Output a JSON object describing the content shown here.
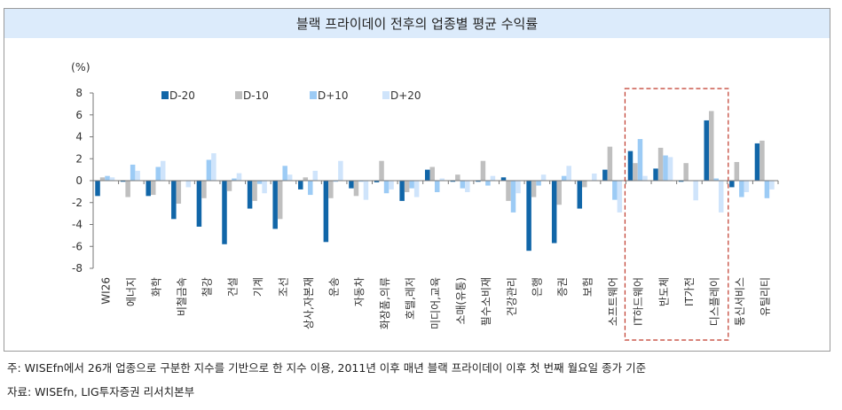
{
  "chart_data": {
    "type": "bar",
    "title": "블랙 프라이데이 전후의 업종별 평균 수익률",
    "ylabel": "(%)",
    "xlabel": "",
    "ylim": [
      -8,
      8
    ],
    "yticks": [
      8,
      6,
      4,
      2,
      0,
      -2,
      -4,
      -6,
      -8
    ],
    "grid": false,
    "legend_position": "top-left",
    "categories": [
      "WI26",
      "에너지",
      "화학",
      "비철금속",
      "철강",
      "건설",
      "기계",
      "조선",
      "상사,자본재",
      "운송",
      "자동차",
      "화장품,의류",
      "호텔,레저",
      "미디어,교육",
      "소매(유통)",
      "필수소비재",
      "건강관리",
      "은행",
      "증권",
      "보험",
      "소프트웨어",
      "IT하드웨어",
      "반도체",
      "IT가전",
      "디스플레이",
      "통신서비스",
      "유틸리티"
    ],
    "highlighted_categories": [
      "IT하드웨어",
      "반도체",
      "IT가전",
      "디스플레이"
    ],
    "series": [
      {
        "name": "D-20",
        "color": "#1166a8",
        "values": [
          -1.4,
          -0.1,
          -1.4,
          -3.5,
          -4.2,
          -5.8,
          -2.55,
          -4.4,
          -0.8,
          -5.6,
          -0.7,
          -0.15,
          -1.85,
          1.0,
          -0.1,
          -0.1,
          0.3,
          -6.4,
          -5.7,
          -2.55,
          1.0,
          2.7,
          1.1,
          -0.1,
          5.5,
          -0.6,
          3.4
        ]
      },
      {
        "name": "D-10",
        "color": "#bfbfbf",
        "values": [
          0.3,
          -1.5,
          -1.3,
          -2.1,
          -1.6,
          -0.95,
          -1.85,
          -3.5,
          0.3,
          -1.6,
          -1.4,
          1.8,
          -1.05,
          1.25,
          0.55,
          1.8,
          -1.85,
          -1.5,
          -2.2,
          -0.6,
          3.1,
          1.6,
          3.0,
          1.6,
          6.35,
          1.7,
          3.65
        ]
      },
      {
        "name": "D+10",
        "color": "#9ccbf5",
        "values": [
          0.43,
          1.46,
          1.25,
          0.0,
          1.9,
          0.2,
          -0.3,
          1.35,
          -1.3,
          -0.1,
          -0.1,
          -1.15,
          -0.7,
          -1.05,
          -0.7,
          -0.45,
          -2.9,
          -0.45,
          0.43,
          0.0,
          -1.75,
          3.8,
          2.3,
          0.0,
          0.2,
          -1.5,
          -1.6
        ]
      },
      {
        "name": "D+20",
        "color": "#cfe4fb",
        "values": [
          0.3,
          0.9,
          1.8,
          -0.6,
          2.5,
          0.68,
          -1.15,
          0.55,
          0.9,
          1.8,
          -1.75,
          -0.8,
          -1.5,
          0.2,
          -1.05,
          0.43,
          -1.15,
          0.55,
          1.35,
          0.65,
          -2.9,
          0.43,
          2.15,
          -1.8,
          -2.9,
          -1.05,
          -0.8
        ]
      }
    ]
  },
  "notes": {
    "note": "주: WISEfn에서 26개 업종으로 구분한 지수를 기반으로 한 지수 이용, 2011년 이후 매년 블랙 프라이데이 이후 첫 번째 월요일 종가 기준",
    "source": "자료: WISEfn, LIG투자증권 리서치본부"
  },
  "colors": {
    "title_band": "#dcebfb",
    "highlight_box": "#c0392b"
  }
}
